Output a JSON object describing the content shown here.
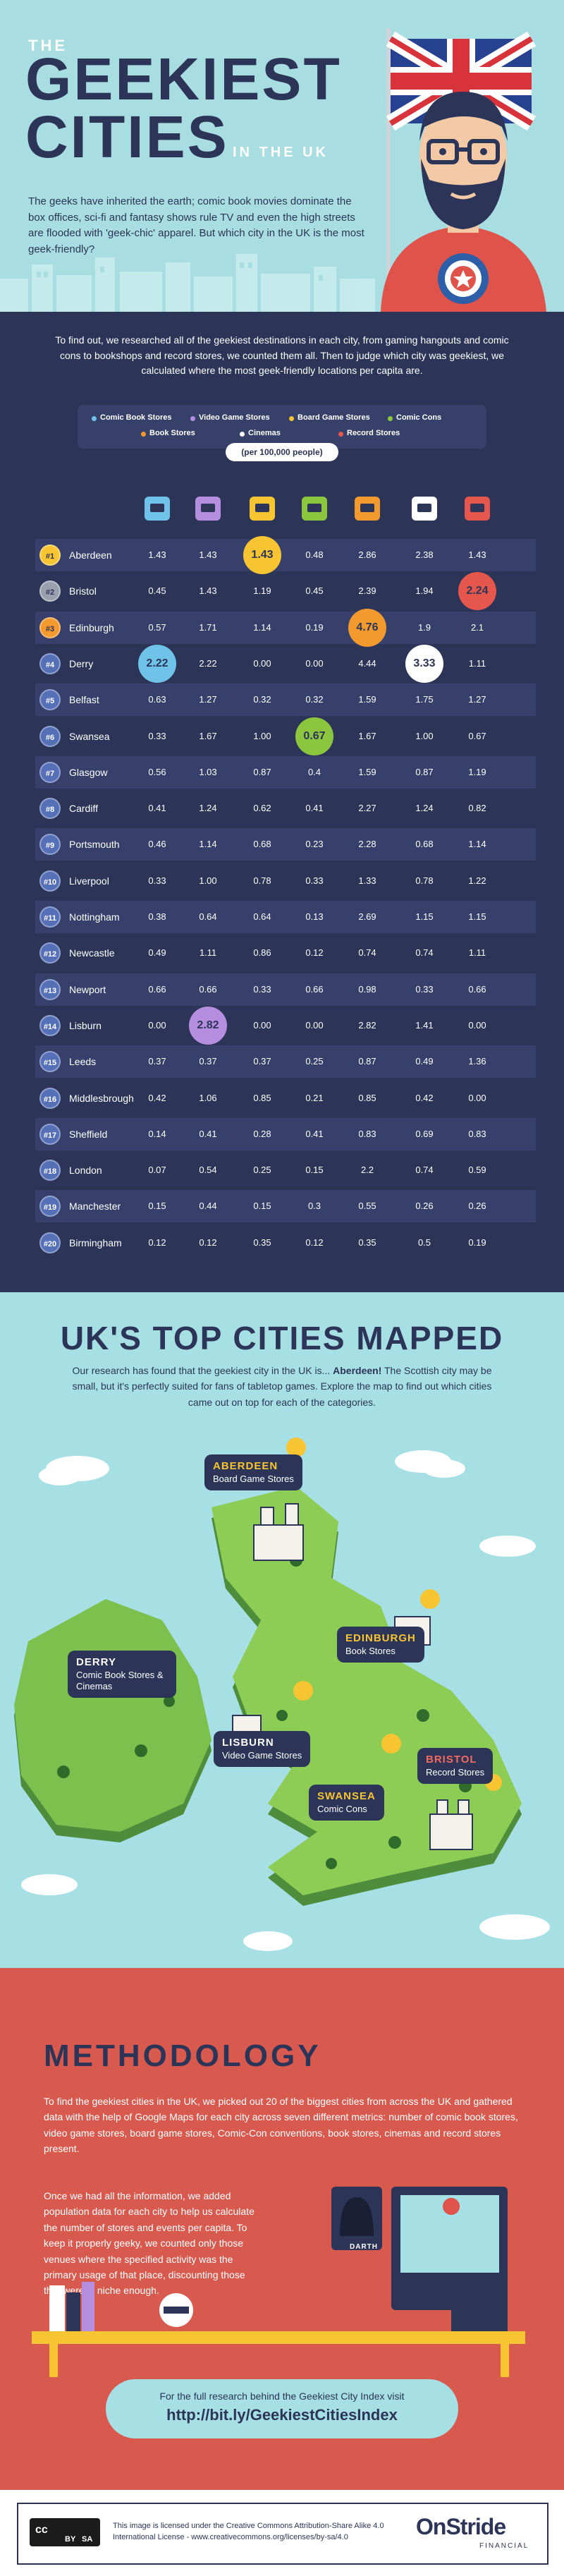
{
  "header": {
    "title_small": "THE",
    "title_line1": "GEEKIEST",
    "title_line2": "CITIES",
    "title_suffix": "IN THE UK",
    "intro": "The geeks have inherited the earth; comic book movies dominate the box offices, sci-fi and fantasy shows rule TV and even the high streets are flooded with 'geek-chic' apparel. But which city in the UK is the most geek-friendly?"
  },
  "research": {
    "intro": "To find out, we researched all of the geekiest destinations in each city, from gaming hangouts and comic cons to bookshops and record stores, we counted them all. Then to judge which city was geekiest, we calculated where the most geek-friendly locations per capita are.",
    "unit": "(per 100,000 people)"
  },
  "table": {
    "columns": [
      {
        "name": "Comic Book Stores",
        "color": "#6fc3e8"
      },
      {
        "name": "Video Game Stores",
        "color": "#b58ee0"
      },
      {
        "name": "Board Game Stores",
        "color": "#f7c531"
      },
      {
        "name": "Comic Cons",
        "color": "#8cc63f"
      },
      {
        "name": "Book Stores",
        "color": "#f39a2e"
      },
      {
        "name": "Cinemas",
        "color": "#ffffff"
      },
      {
        "name": "Record Stores",
        "color": "#e5574c"
      }
    ],
    "rows": [
      {
        "rank": "#1",
        "city": "Aberdeen",
        "values": [
          "1.43",
          "1.43",
          "1.43",
          "0.48",
          "2.86",
          "2.38",
          "1.43"
        ]
      },
      {
        "rank": "#2",
        "city": "Bristol",
        "values": [
          "0.45",
          "1.43",
          "1.19",
          "0.45",
          "2.39",
          "1.94",
          "2.24"
        ]
      },
      {
        "rank": "#3",
        "city": "Edinburgh",
        "values": [
          "0.57",
          "1.71",
          "1.14",
          "0.19",
          "4.76",
          "1.9",
          "2.1"
        ]
      },
      {
        "rank": "#4",
        "city": "Derry",
        "values": [
          "2.22",
          "2.22",
          "0.00",
          "0.00",
          "4.44",
          "3.33",
          "1.11"
        ]
      },
      {
        "rank": "#5",
        "city": "Belfast",
        "values": [
          "0.63",
          "1.27",
          "0.32",
          "0.32",
          "1.59",
          "1.75",
          "1.27"
        ]
      },
      {
        "rank": "#6",
        "city": "Swansea",
        "values": [
          "0.33",
          "1.67",
          "1.00",
          "0.67",
          "1.67",
          "1.00",
          "0.67"
        ]
      },
      {
        "rank": "#7",
        "city": "Glasgow",
        "values": [
          "0.56",
          "1.03",
          "0.87",
          "0.4",
          "1.59",
          "0.87",
          "1.19"
        ]
      },
      {
        "rank": "#8",
        "city": "Cardiff",
        "values": [
          "0.41",
          "1.24",
          "0.62",
          "0.41",
          "2.27",
          "1.24",
          "0.82"
        ]
      },
      {
        "rank": "#9",
        "city": "Portsmouth",
        "values": [
          "0.46",
          "1.14",
          "0.68",
          "0.23",
          "2.28",
          "0.68",
          "1.14"
        ]
      },
      {
        "rank": "#10",
        "city": "Liverpool",
        "values": [
          "0.33",
          "1.00",
          "0.78",
          "0.33",
          "1.33",
          "0.78",
          "1.22"
        ]
      },
      {
        "rank": "#11",
        "city": "Nottingham",
        "values": [
          "0.38",
          "0.64",
          "0.64",
          "0.13",
          "2.69",
          "1.15",
          "1.15"
        ]
      },
      {
        "rank": "#12",
        "city": "Newcastle",
        "values": [
          "0.49",
          "1.11",
          "0.86",
          "0.12",
          "0.74",
          "0.74",
          "1.11"
        ]
      },
      {
        "rank": "#13",
        "city": "Newport",
        "values": [
          "0.66",
          "0.66",
          "0.33",
          "0.66",
          "0.98",
          "0.33",
          "0.66"
        ]
      },
      {
        "rank": "#14",
        "city": "Lisburn",
        "values": [
          "0.00",
          "2.82",
          "0.00",
          "0.00",
          "2.82",
          "1.41",
          "0.00"
        ]
      },
      {
        "rank": "#15",
        "city": "Leeds",
        "values": [
          "0.37",
          "0.37",
          "0.37",
          "0.25",
          "0.87",
          "0.49",
          "1.36"
        ]
      },
      {
        "rank": "#16",
        "city": "Middlesbrough",
        "values": [
          "0.42",
          "1.06",
          "0.85",
          "0.21",
          "0.85",
          "0.42",
          "0.00"
        ]
      },
      {
        "rank": "#17",
        "city": "Sheffield",
        "values": [
          "0.14",
          "0.41",
          "0.28",
          "0.41",
          "0.83",
          "0.69",
          "0.83"
        ]
      },
      {
        "rank": "#18",
        "city": "London",
        "values": [
          "0.07",
          "0.54",
          "0.25",
          "0.15",
          "2.2",
          "0.74",
          "0.59"
        ]
      },
      {
        "rank": "#19",
        "city": "Manchester",
        "values": [
          "0.15",
          "0.44",
          "0.15",
          "0.3",
          "0.55",
          "0.26",
          "0.26"
        ]
      },
      {
        "rank": "#20",
        "city": "Birmingham",
        "values": [
          "0.12",
          "0.12",
          "0.35",
          "0.12",
          "0.35",
          "0.5",
          "0.19"
        ]
      }
    ]
  },
  "map": {
    "title": "UK'S TOP CITIES MAPPED",
    "intro_lead": "Our research has found that the geekiest city in the UK is...",
    "intro_winner": "Aberdeen!",
    "intro_rest": "The Scottish city may be small, but it's perfectly suited for fans of tabletop games. Explore the map to find out which cities came out on top for each of the categories.",
    "labels": [
      {
        "city": "ABERDEEN",
        "category": "Board Game Stores"
      },
      {
        "city": "EDINBURGH",
        "category": "Book Stores"
      },
      {
        "city": "DERRY",
        "category": "Comic Book Stores & Cinemas"
      },
      {
        "city": "LISBURN",
        "category": "Video Game Stores"
      },
      {
        "city": "SWANSEA",
        "category": "Comic Cons"
      },
      {
        "city": "BRISTOL",
        "category": "Record Stores"
      }
    ]
  },
  "methodology": {
    "title": "METHODOLOGY",
    "paragraph1": "To find the geekiest cities in the UK, we picked out 20 of the biggest cities from across the UK and gathered data with the help of Google Maps for each city across seven different metrics: number of comic book stores, video game stores, board game stores, Comic-Con conventions, book stores, cinemas and record stores present.",
    "paragraph2": "Once we had all the information, we added population data for each city to help us calculate the number of stores and events per capita. To keep it properly geeky, we counted only those venues where the specified activity was the primary usage of that place, discounting those that weren't niche enough.",
    "helmet_label": "DARTH",
    "link_lead": "For the full research behind the Geekiest City Index visit",
    "link": "http://bit.ly/GeekiestCitiesIndex"
  },
  "footer": {
    "cc": "cc",
    "by": "BY",
    "sa": "SA",
    "license": "This image is licensed under the Creative Commons Attribution-Share Alike 4.0 International License - www.creativecommons.org/licenses/by-sa/4.0",
    "brand": "OnStride",
    "brand_sub": "FINANCIAL"
  }
}
